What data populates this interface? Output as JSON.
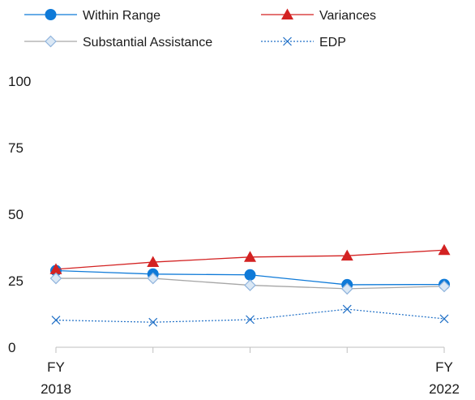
{
  "chart_data": {
    "type": "line",
    "title": "",
    "xlabel": "",
    "ylabel": "",
    "ylim": [
      0,
      100
    ],
    "yticks": [
      "0",
      "25",
      "50",
      "75",
      "100"
    ],
    "x_tick_labels": [
      {
        "index": 0,
        "line1": "FY",
        "line2": "2018"
      },
      {
        "index": 4,
        "line1": "FY",
        "line2": "2022"
      }
    ],
    "x_count": 5,
    "grid": false,
    "legend_position": "top",
    "series": [
      {
        "name": "Within Range",
        "color": "#0f7ad8",
        "marker": "circle",
        "line_style": "solid",
        "values": [
          28.8,
          27.5,
          27.2,
          23.5,
          23.6
        ]
      },
      {
        "name": "Variances",
        "color": "#d32222",
        "marker": "triangle",
        "line_style": "solid",
        "values": [
          29.3,
          32.0,
          33.9,
          34.4,
          36.5
        ]
      },
      {
        "name": "Substantial Assistance",
        "color": "#a6a6a6",
        "marker_fill": "#dbe8f5",
        "marker_stroke": "#8fb3dc",
        "marker": "diamond",
        "line_style": "solid",
        "values": [
          25.9,
          25.9,
          23.3,
          22.0,
          22.9
        ]
      },
      {
        "name": "EDP",
        "color": "#1f6fc6",
        "marker": "x",
        "line_style": "dotted",
        "values": [
          10.2,
          9.4,
          10.4,
          14.3,
          10.7
        ]
      }
    ]
  }
}
